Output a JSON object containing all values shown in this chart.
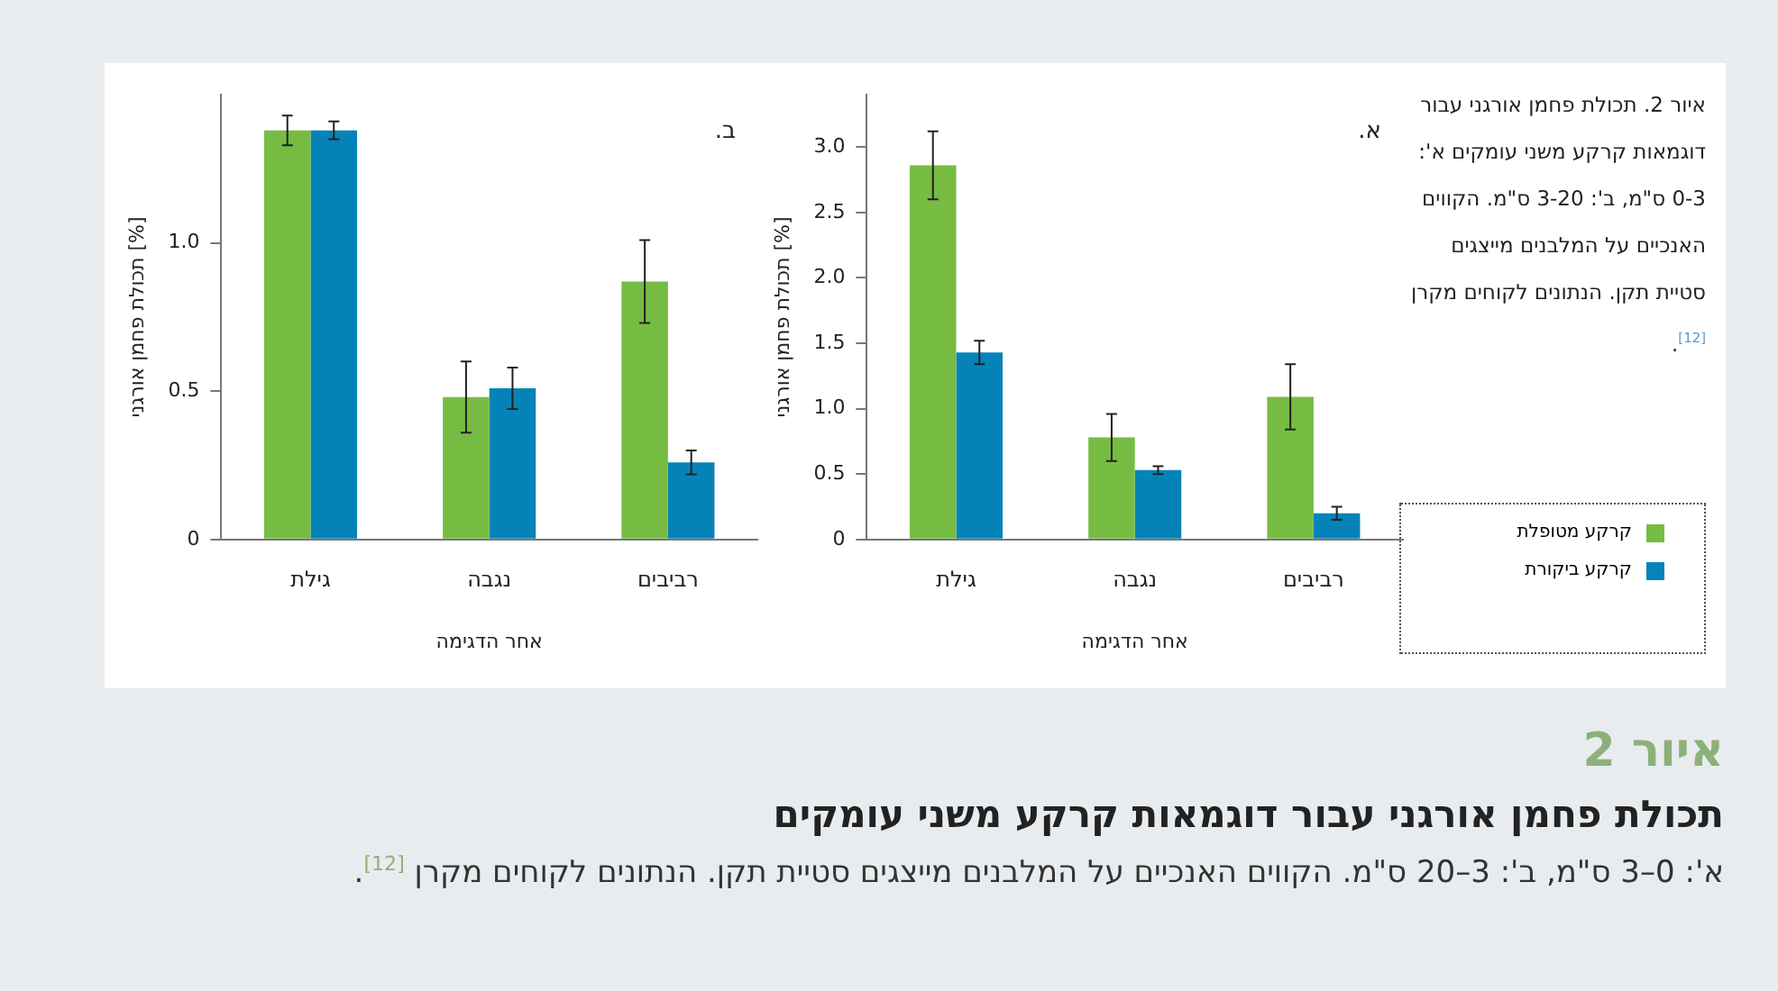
{
  "chart_data": [
    {
      "type": "bar",
      "xlabel": "אחר הדגימה",
      "ylabel": "תכולת פחמן אורגני [%]",
      "categories": [
        "גילת",
        "נגבה",
        "רביבים"
      ],
      "series": [
        {
          "name": "קרקע מטופלת",
          "color": "#76bc43",
          "values": [
            2.86,
            0.78,
            1.09
          ],
          "errors": [
            0.26,
            0.18,
            0.25
          ]
        },
        {
          "name": "קרקע ביקורת",
          "color": "#0583b8",
          "values": [
            1.43,
            0.53,
            0.2
          ],
          "errors": [
            0.09,
            0.03,
            0.05
          ]
        }
      ],
      "ylim": [
        0,
        3.4
      ],
      "yticks": [
        0,
        0.5,
        {
          "value": 1,
          "label": "1.0"
        },
        1.5,
        {
          "value": 2,
          "label": "2.0"
        },
        2.5,
        {
          "value": 3,
          "label": "3.0"
        }
      ],
      "grid": false,
      "legend": "right",
      "annotations": [
        "א.",
        "איור 2",
        "תכולת פחמן אורגני עבור דוגמאות קרקע משני עומקים",
        "איור 2. תכולת פחמן אורגני עבור דוגמאות קרקע משני עומקים א': 0-3 ס\"מ, ב': 3-20 ס\"מ. הקווים האנכיים על המלבנים מייצגים סטיית תקן. הנתונים לקוחים מקרן $^{[12]}$.",
        "א': 0–3 ס\"מ, ב': 3–20 ס\"מ. הקווים האנכיים על המלבנים מייצגים סטיית תקן. הנתונים לקוחים מקרן $^{[12]}$."
      ]
    },
    {
      "type": "bar",
      "xlabel": "אחר הדגימה",
      "ylabel": "תכולת פחמן אורגני [%]",
      "categories": [
        "גילת",
        "נגבה",
        "רביבים"
      ],
      "series": [
        {
          "color": "#76bc43",
          "values": [
            1.38,
            0.48,
            0.87
          ],
          "errors": [
            0.05,
            0.12,
            0.14
          ]
        },
        {
          "color": "#0583b8",
          "values": [
            1.38,
            0.51,
            0.26
          ],
          "errors": [
            0.03,
            0.07,
            0.04
          ]
        }
      ],
      "ylim": [
        0,
        1.5
      ],
      "yticks": [
        0,
        0.5,
        {
          "value": 1,
          "label": "1.0"
        }
      ],
      "grid": false,
      "annotations": [
        "ב."
      ]
    }
  ]
}
